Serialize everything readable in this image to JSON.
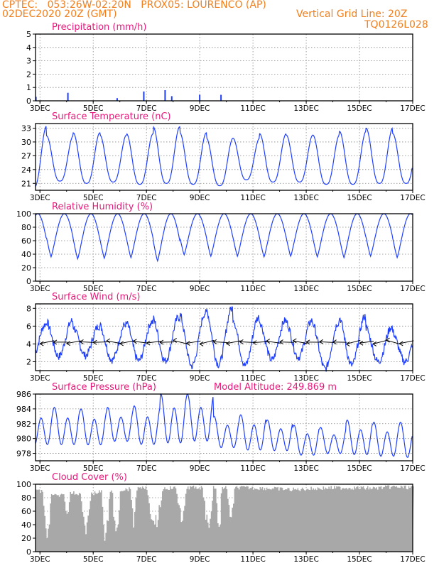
{
  "header": {
    "line1": "CPTEC:   053:26W-02:20N   PROX05: LOURENCO (AP)",
    "line2": "02DEC2020 20Z (GMT)",
    "grid_note": "Vertical Grid Line: 20Z",
    "code": "TQ0126L028"
  },
  "colors": {
    "header": "#f07f1e",
    "title": "#e6197a",
    "line": "#1f3fff",
    "cloud": "#a8a8a8",
    "grid": "#888888"
  },
  "x_axis": {
    "tick_labels": [
      "3DEC",
      "5DEC",
      "7DEC",
      "9DEC",
      "11DEC",
      "13DEC",
      "15DEC",
      "17DEC"
    ],
    "tick_days": [
      3,
      5,
      7,
      9,
      11,
      13,
      15,
      17
    ],
    "start": "02DEC2020 20Z",
    "end": "17DEC2020 00Z"
  },
  "chart_data": [
    {
      "type": "bar",
      "title": "Precipitation (mm/h)",
      "ylim": [
        0,
        5
      ],
      "yticks": [
        0,
        1,
        2,
        3,
        4,
        5
      ],
      "grid": true,
      "points": [
        [
          2.85,
          0.3
        ],
        [
          4.05,
          0.6
        ],
        [
          5.9,
          0.2
        ],
        [
          6.9,
          0.7
        ],
        [
          7.7,
          0.8
        ],
        [
          7.95,
          0.35
        ],
        [
          9.0,
          0.45
        ],
        [
          9.8,
          0.45
        ]
      ]
    },
    {
      "type": "line",
      "title": "Surface Temperature (nC)",
      "ylim": [
        19.5,
        34
      ],
      "yticks": [
        21,
        24,
        27,
        30,
        33
      ],
      "grid": true,
      "daily_max": [
        31.5,
        33.5,
        31.3,
        32.0,
        31.5,
        31.8,
        33.3,
        32.0,
        30.8,
        30.8,
        31.8,
        31.5,
        31.5,
        32.3,
        33.0,
        31.8
      ],
      "daily_min": [
        20.8,
        20.0,
        21.5,
        21.0,
        21.3,
        20.8,
        21.0,
        20.8,
        20.5,
        21.8,
        21.3,
        21.3,
        20.8,
        20.8,
        21.0,
        21.0
      ],
      "phase_hour": 0.25
    },
    {
      "type": "line",
      "title": "Relative Humidity (%)",
      "ylim": [
        0,
        100
      ],
      "yticks": [
        0,
        20,
        40,
        60,
        80,
        100
      ],
      "grid": true,
      "daily_max": [
        100,
        100,
        100,
        100,
        100,
        100,
        100,
        100,
        100,
        100,
        100,
        100,
        100,
        100,
        100,
        100
      ],
      "daily_min": [
        35,
        30,
        36,
        33,
        34,
        35,
        30,
        39,
        37,
        37,
        36,
        37,
        36,
        35,
        37,
        35
      ]
    },
    {
      "type": "line",
      "title": "Surface Wind (m/s)",
      "ylim": [
        1,
        8.5
      ],
      "yticks": [
        2,
        4,
        6,
        8
      ],
      "grid": true,
      "daily_max": [
        6.7,
        6.2,
        6.6,
        6.0,
        6.2,
        6.5,
        7.0,
        7.5,
        8.0,
        7.0,
        6.6,
        6.6,
        6.4,
        7.1,
        5.9,
        5.4
      ],
      "daily_min": [
        2.1,
        2.4,
        2.6,
        2.7,
        2.2,
        2.1,
        2.1,
        1.5,
        1.7,
        1.6,
        2.2,
        2.5,
        1.2,
        1.6,
        2.0,
        2.0
      ],
      "vector_level": 4.2,
      "vector_direction": "from east"
    },
    {
      "type": "line",
      "title": "Surface Pressure (hPa)",
      "annotation": "Model Altitude: 249.869 m",
      "ylim": [
        977,
        986
      ],
      "yticks": [
        978,
        980,
        982,
        984,
        986
      ],
      "grid": true,
      "daily_high": [
        984.2,
        984.2,
        984.0,
        984.2,
        984.4,
        986.0,
        986.0,
        983.0,
        983.2,
        982.5,
        981.8,
        981.5,
        982.5,
        982.2,
        982.2
      ],
      "daily_low": [
        978.5,
        978.5,
        978.5,
        979.0,
        978.5,
        978.5,
        978.8,
        978.2,
        977.8,
        977.8,
        977.2,
        977.5,
        977.2,
        977.0,
        976.8
      ]
    },
    {
      "type": "area",
      "title": "Cloud Cover (%)",
      "ylim": [
        0,
        100
      ],
      "yticks": [
        0,
        20,
        40,
        60,
        80,
        100
      ],
      "grid": true,
      "levels": [
        [
          2.85,
          93
        ],
        [
          3.3,
          90
        ],
        [
          3.7,
          85
        ],
        [
          4.2,
          90
        ],
        [
          4.8,
          88
        ],
        [
          5.3,
          92
        ],
        [
          6.0,
          95
        ],
        [
          7.0,
          97
        ],
        [
          7.5,
          97
        ],
        [
          8.5,
          98
        ],
        [
          9.5,
          98
        ],
        [
          10.5,
          98
        ],
        [
          11.5,
          97
        ],
        [
          12.5,
          95
        ],
        [
          13.5,
          97
        ],
        [
          14.5,
          98
        ],
        [
          15.5,
          97
        ],
        [
          16.2,
          99
        ],
        [
          17.0,
          98
        ]
      ],
      "dips": [
        [
          3.1,
          3.4,
          5
        ],
        [
          3.9,
          4.1,
          45
        ],
        [
          4.5,
          4.9,
          25
        ],
        [
          5.3,
          5.6,
          10
        ],
        [
          5.7,
          6.0,
          8
        ],
        [
          6.4,
          6.6,
          30
        ],
        [
          7.0,
          7.6,
          30
        ],
        [
          8.1,
          8.5,
          40
        ],
        [
          9.1,
          9.5,
          30
        ],
        [
          9.6,
          9.8,
          10
        ],
        [
          10.0,
          10.3,
          42
        ]
      ]
    }
  ]
}
